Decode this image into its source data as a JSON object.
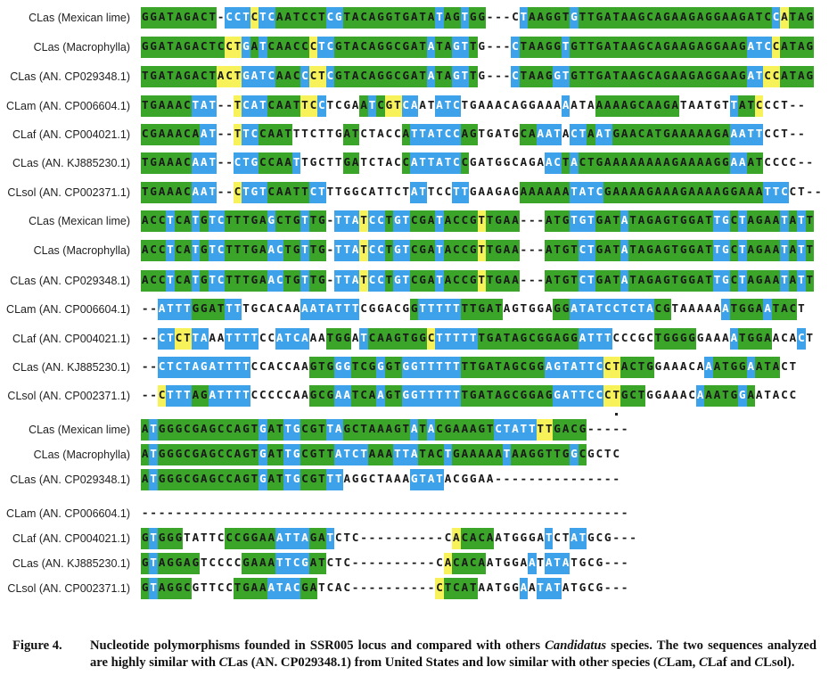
{
  "colors": {
    "green": "#3ba52a",
    "blue": "#3ea2ea",
    "yellow": "#f7f25a"
  },
  "blocks": [
    {
      "rows": [
        {
          "label": "CLas (Mexican lime)",
          "seq": "GGATAGACT-CCTCTCAATCCTCGTACAGGTGATATAGTGG---CTAAGGTGTTGATAAGCAGAAGAGGAAGATCCATAG",
          "mask": "gggggggggwbbbybbggggggbbgggggggggggbggbggwwwwbgggggbgggggggggggggggggggggggbyggggg"
        },
        {
          "label": "CLas (Macrophylla)",
          "seq": "GGATAGACTCCTGATCAACCCTCGTACAGGCGATATAGTTG---CTAAGGTGTTGATAAGCAGAAGAGGAAGATCCATAG",
          "mask": "ggggggggggyybgbgggggybbgggggggggggbggbbgwwwwbgggggbgggggggggggggggggggggbbbyggggg"
        },
        {
          "label": "CLas (AN. CP029348.1)",
          "seq": "TGATAGACTACTGATCAACCCTCGTACAGGCGATATAGTTG---CTAAGGTGTTGATAAGCAGAAGAGGAAGATCCATAG",
          "mask": "gggggggggyyybbbbgggbyybgggggggggggbggbbgwwwwbggggbbgggggggggggggggggggggbbyyggggg"
        },
        {
          "label": "CLam (AN. CP006604.1)",
          "seq": "TGAAACTAT--TCATCAATTCCTCGAATCGTCAATATCTGAAACAGGAAAAATAAAAAGCAAGATAATGTTATCCCT--",
          "mask": "ggggggbbbwwybbbggggyybwwwwgbgyybbwwbbbwwwwwwwwwwwwbwwwggggggggggwwwwwwbggyww"
        },
        {
          "label": "CLaf (AN. CP004021.1)",
          "seq": "CGAAACAAT--TTCCAATTTCTTGATCTACCATTATCCAGTGATGCAAATACTAATGAACATGAAAAAGAAATTCCT--",
          "mask": "gggggggbbwwybbggggwwwwwwggwwwwwgbbbbbbggwwwwwggbbbwbbgbbggggggggggggggbbbbww"
        },
        {
          "label": "CLas (AN. KJ885230.1)",
          "seq": "TGAAACAAT--CTGCCAATTGCTTGATCTACCATTATCCGATGGCAGAACTACTGAAAAAAAAGAAAAGGAAATCCCC--",
          "mask": "ggggggbbbwwbbbggggbwwwwwggwwwwwgbbbbbbgwwwwwwwwwbbgbggggggggggggggggggbbggwwww"
        },
        {
          "label": "CLsol (AN. CP002371.1)",
          "seq": "TGAAACAAT--CTGTCAATTCTTTGGCATTCTATTCCTTGAAGAGAAAAAATATCGAAAAGAAAGAAAAGGAAATTCCT--",
          "mask": "ggggggbbbwwybbbgggggbbwwwwwwwwwwbbwwwbbwwwwwwggggggbbbbgggggggggggggggggggbbbww"
        }
      ]
    },
    {
      "rows": [
        {
          "label": "CLas (Mexican lime)",
          "seq": "ACCTCATGTCTTTGAGCTGTTG-TTATCCTGTCGATACCGTTGAA---ATGTGTGATATAGAGTGGATTGCTAGAATATT",
          "mask": "gggbggbgbbgggggbgggbggwbbbybbgbbgggbggggyggggwwwgggbbbgggbggggggggggbbgbggggbgbg"
        },
        {
          "label": "CLas (Macrophylla)",
          "seq": "ACCTCATGTCTTTGAACTGTTG-TTATCCTGTCGATACCGTTGAA---ATGTCTGATATAGAGTGGATTGCTAGAATATT",
          "mask": "gggbggbgbbgggggbbggbggwbbbybbgbbgggbggggyggggwwwggggbbgggbggggggggggbbgbggggbgbg"
        },
        {
          "label": "CLas (AN. CP029348.1)",
          "seq": "ACCTCATGTCTTTGAACTGTTG-TTATCCTGTCGATACCGTTGAA---ATGTCTGATATAGAGTGGATTGCTAGAATATT",
          "mask": "gggbggbgbbgggggbbggbggwbbbybbgbbgggbggggyggggwwwggggbbgggbggggggggggbbgbggggbgbg"
        },
        {
          "label": "CLam (AN. CP006604.1)",
          "seq": "--ATTTGGATTTTGCACAAAATATTTCGGACGGTTTTTTTGATAGTGGAGGATATCCTCTACGTAAAAAATGGAATACT",
          "mask": "wwbbbbggggbbwwwwwwwbbbbbbbwwwwwwgbbbbbgggggwwwwwwggbbbbbbbbbbggwwwwwwbggggbggg"
        },
        {
          "label": "CLaf (AN. CP004021.1)",
          "seq": "--CTCTTAAATTTTCCATCAAATGGATCAAGTGGCTTTTTTGATAGCGGAGGATTTCCCGCTGGGGGAAAATGGAACACT",
          "mask": "wwbbyybbwwbbbbwwbbbbwwgggwbgggggggybbbbbggggggggggggbbbbwwwwwgggggwwwwbggggwwwb"
        },
        {
          "label": "CLas (AN. KJ885230.1)",
          "seq": "--CTCTAGATTTTCCACCAAGTGGGTCGGGTGGTTTTTTTGATAGCGGAGTATTCCTACTGGAAACAAATGGAATACT",
          "mask": "wwbbbbbbbbbbbwwwwwwwgggbbgggbggbbbbbbbggggggggggbbbbbbbyyggggwwwwwwbggggbggg"
        },
        {
          "label": "CLsol (AN. CP002371.1)",
          "seq": "--CTTTAGATTTTCCCCCAAGCGAATCAAGTGGTTTTTTGATAGCGGAGGATTCCCTGCTGGAAACAAATGGAATACC",
          "mask": "wwybbbggbbbbbwwwwwwwgggbbgggbggbbbbbbbgggggggggggbbbbbbyygggwwwwwwbggggbgww"
        }
      ]
    },
    {
      "rows": [
        {
          "label": "CLas (Mexican lime)",
          "seq": "ATGGGCGAGCCAGTGATTGCGTTAGCTAAAGTATACGAAAGTCTATTTTGACG-----",
          "mask": "gbggggggggggggbggbbgggbbggggggggbgbgggggggbbbbbyyggggwwwww"
        },
        {
          "label": "CLas (Macrophylla)",
          "seq": "ATGGGCGAGCCAGTGATTGCGTTATCTAAATTATACTGAAAAATAAGGTTGGCGCTC",
          "mask": "gbggggggggggggbggbbggggbbbbgggbbbgggbggggggbgggggggbgwwww"
        },
        {
          "label": "CLas (AN. CP029348.1)",
          "seq": "ATGGGCGAGCCAGTGATTGCGTTTAGGCTAAAGTATACGGAA---------------",
          "mask": "gbggggggggggggbggbbgggbbwwwwwwwwbbbbwwwwwwwwwwwwwwwwwwwww"
        },
        {
          "label": "CLam (AN. CP006604.1)",
          "seq": "----------------------------------------------------------",
          "mask": "wwwwwwwwwwwwwwwwwwwwwwwwwwwwwwwwwwwwwwwwwwwwwwwwwwwwwwwwww"
        },
        {
          "label": "CLaf (AN. CP004021.1)",
          "seq": "GTGGGTATTCCCGGAAATTAGATCTC----------CACACAATGGGATCTATGCG---",
          "mask": "gbgggwwwwwggggggbbbbggbwwwwwwwwwwwwwwyggggwwwwwwbwwbbwwwwww"
        },
        {
          "label": "CLas (AN. KJ885230.1)",
          "seq": "GTAGGAGTCCCCGAAATTCGATCTC----------CACACAATGGAATATATGCG---",
          "mask": "gbgggggwwwwwggggbbbbggwwwwwwwwwwwwwwyggggwwwwwbwbbbwwwwwww"
        },
        {
          "label": "CLsol (AN. CP002371.1)",
          "seq": "GTAGGCGTTCCTGAAATACGATCAC----------CTCATAATGGAATATATGCG---",
          "mask": "gbggggwwwwwggggbbbbggwwwwwwwwwwwwwwyggggwwwwwbwbbbwwwwwww"
        }
      ]
    }
  ],
  "caption": {
    "label": "Figure 4.",
    "text_parts": [
      {
        "t": "Nucleotide polymorphisms founded in SSR005 locus and compared with others ",
        "i": false
      },
      {
        "t": "Candidatus",
        "i": true
      },
      {
        "t": " species. The two sequences analyzed are highly similar with ",
        "i": false
      },
      {
        "t": "C",
        "i": true
      },
      {
        "t": "Las (AN. CP029348.1) from United States and low similar with other species (",
        "i": false
      },
      {
        "t": "C",
        "i": true
      },
      {
        "t": "Lam, ",
        "i": false
      },
      {
        "t": "C",
        "i": true
      },
      {
        "t": "Laf and ",
        "i": false
      },
      {
        "t": "C",
        "i": true
      },
      {
        "t": "Lsol).",
        "i": false
      }
    ]
  }
}
